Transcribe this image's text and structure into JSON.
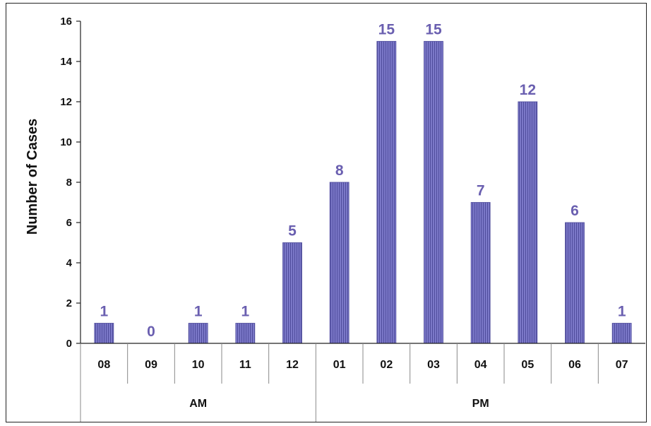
{
  "chart_data": {
    "type": "bar",
    "title": "",
    "xlabel": "",
    "ylabel": "Number of Cases",
    "ylim": [
      0,
      16
    ],
    "yticks": [
      0,
      2,
      4,
      6,
      8,
      10,
      12,
      14,
      16
    ],
    "categories": [
      "08",
      "09",
      "10",
      "11",
      "12",
      "01",
      "02",
      "03",
      "04",
      "05",
      "06",
      "07"
    ],
    "values": [
      1,
      0,
      1,
      1,
      5,
      8,
      15,
      15,
      7,
      12,
      6,
      1
    ],
    "groups": [
      {
        "label": "AM",
        "from": 0,
        "to": 4
      },
      {
        "label": "PM",
        "from": 5,
        "to": 11
      }
    ],
    "data_labels": true,
    "grid": false,
    "legend": "none",
    "colors": {
      "bar_fill": "#7b78c8",
      "bar_stripe": "#4f4c9c",
      "data_label": "#6a5fb0",
      "axis": "#222222"
    }
  }
}
